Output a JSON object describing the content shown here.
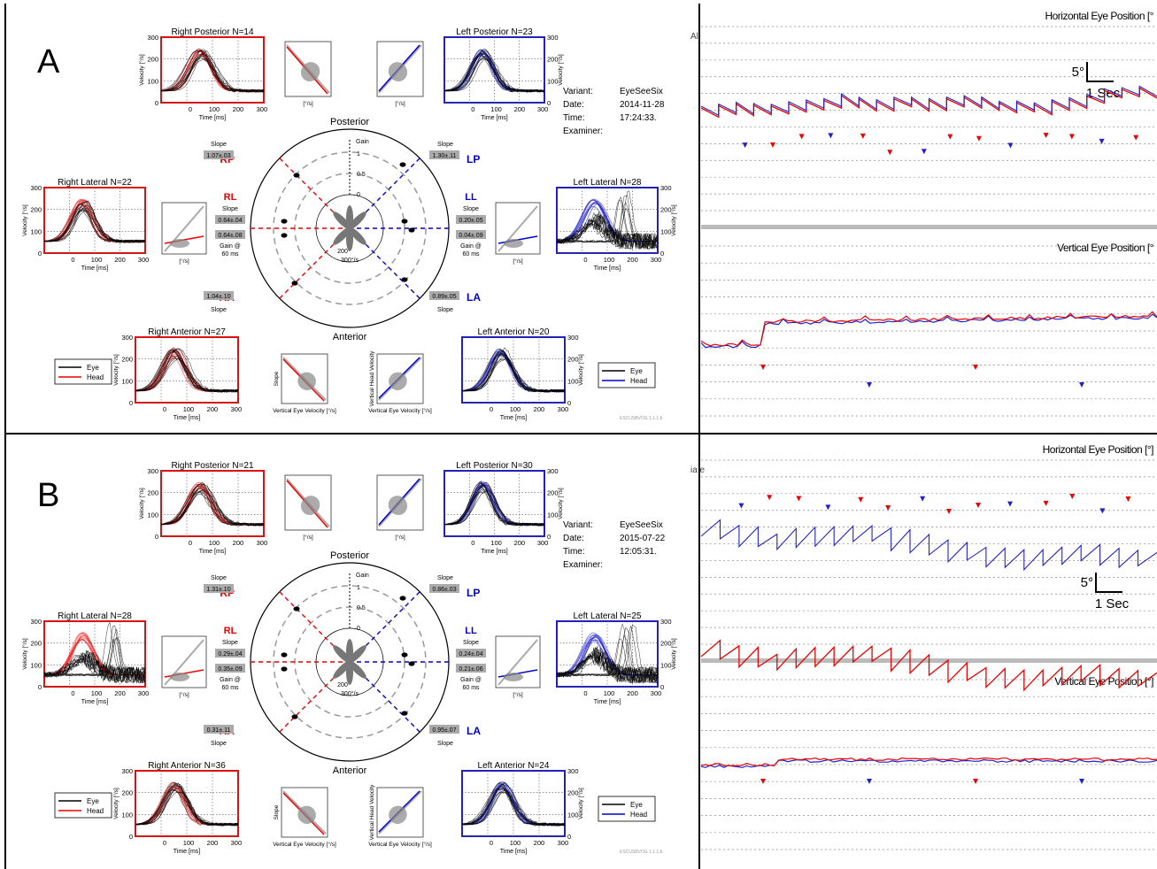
{
  "panels": [
    {
      "letter": "A",
      "variant_label": "Variant:",
      "variant": "EyeSeeSix",
      "date_label": "Date:",
      "date": "2014-11-28",
      "time_label": "Time:",
      "time": "17:24:33.",
      "examiner_label": "Examiner:",
      "stray_text": "Al",
      "scale": {
        "deg": "5°",
        "sec": "1 Sec"
      },
      "horizontal_title": "Horizontal Eye Position [°",
      "vertical_title": "Vertical Eye Position [°",
      "canals": {
        "rp": {
          "title": "Right Posterior",
          "n": "N=14"
        },
        "lp": {
          "title": "Left Posterior",
          "n": "N=23"
        },
        "rl": {
          "title": "Right Lateral",
          "n": "N=22"
        },
        "ll": {
          "title": "Left Lateral",
          "n": "N=28"
        },
        "ra": {
          "title": "Right Anterior",
          "n": "N=27"
        },
        "la": {
          "title": "Left Anterior",
          "n": "N=20"
        }
      },
      "polar": {
        "rp_slope": "1.07±.03",
        "lp_slope": "1.30±.11",
        "rl_slope": "0.64±.04",
        "rl_gain": "0.64±.08",
        "ll_slope": "0.20±.05",
        "ll_gain": "0.04±.09",
        "ra_slope": "1.04±.10",
        "la_slope": "0.89±.05"
      },
      "version": "ESCUSBVOG 1.1.1.b"
    },
    {
      "letter": "B",
      "variant_label": "Variant:",
      "variant": "EyeSeeSix",
      "date_label": "Date:",
      "date": "2015-07-22",
      "time_label": "Time:",
      "time": "12:05:31.",
      "examiner_label": "Examiner:",
      "stray_text": "ia e",
      "scale": {
        "deg": "5°",
        "sec": "1 Sec"
      },
      "horizontal_title": "Horizontal Eye Position [°]",
      "vertical_title": "Vertical Eye Position [°]",
      "canals": {
        "rp": {
          "title": "Right Posterior",
          "n": "N=21"
        },
        "lp": {
          "title": "Left Posterior",
          "n": "N=30"
        },
        "rl": {
          "title": "Right Lateral",
          "n": "N=28"
        },
        "ll": {
          "title": "Left Lateral",
          "n": "N=25"
        },
        "ra": {
          "title": "Right Anterior",
          "n": "N=36"
        },
        "la": {
          "title": "Left Anterior",
          "n": "N=24"
        }
      },
      "polar": {
        "rp_slope": "1.31±.10",
        "lp_slope": "0.86±.03",
        "rl_slope": "0.29±.04",
        "rl_gain": "0.35±.09",
        "ll_slope": "0.24±.04",
        "ll_gain": "0.21±.06",
        "ra_slope": "0.31±.11",
        "la_slope": "0.95±.07"
      },
      "version": "ESCUSBVOG 1.1.1.b"
    }
  ],
  "labels": {
    "posterior": "Posterior",
    "anterior": "Anterior",
    "slope": "Slope",
    "gain": "Gain",
    "gain_at": "Gain @",
    "ms60": "60 ms",
    "rp": "RP",
    "lp": "LP",
    "rl": "RL",
    "ll": "LL",
    "ra": "RA",
    "la": "LA",
    "time_ms": "Time [ms]",
    "velocity": "Velocity [°/s]",
    "deg_s": "[°/s]",
    "eye": "Eye",
    "head": "Head",
    "vert_eye_vel": "Vertical Eye Velocity [°/s]",
    "vert_head_vel": "Vertical Head Velocity",
    "polar_300": "300°/s",
    "polar_200": "200",
    "gain_ticks": [
      "1",
      "0.5",
      "0"
    ]
  },
  "chart_data": [
    {
      "type": "line",
      "title": "Right Posterior N=14",
      "xlabel": "Time [ms]",
      "ylabel": "Velocity [°/s]",
      "xlim": [
        -100,
        300
      ],
      "ylim": [
        0,
        300
      ],
      "x_ticks": [
        0,
        100,
        200,
        300
      ],
      "y_ticks": [
        0,
        100,
        200,
        300
      ],
      "series": [
        {
          "name": "Eye",
          "x": [
            -100,
            0,
            30,
            60,
            90,
            120,
            160,
            200,
            300
          ],
          "values": [
            0,
            10,
            120,
            235,
            200,
            110,
            40,
            10,
            0
          ]
        },
        {
          "name": "Head",
          "x": [
            -100,
            0,
            30,
            60,
            90,
            120,
            160,
            200,
            300
          ],
          "values": [
            0,
            12,
            110,
            215,
            190,
            105,
            35,
            8,
            0
          ]
        }
      ]
    },
    {
      "type": "line",
      "title": "Horizontal Eye Position [°]",
      "series": [
        {
          "name": "",
          "shape": "saw-tooth nystagmus"
        }
      ]
    }
  ]
}
